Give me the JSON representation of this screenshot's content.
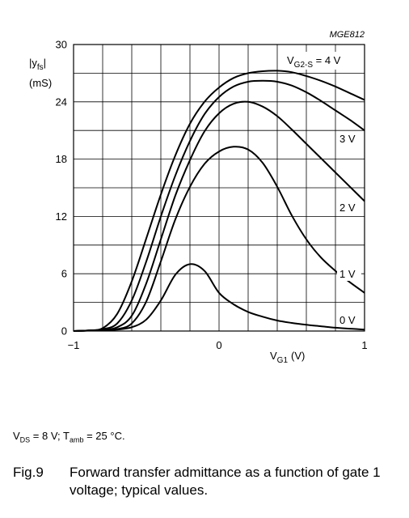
{
  "chart_data": {
    "type": "line",
    "code": "MGE812",
    "ylabel": {
      "main": "|y",
      "sub": "fs",
      "close": "|",
      "unit": "(mS)"
    },
    "xlabel": {
      "main": "V",
      "sub": "G1",
      "unit": "(V)"
    },
    "xlim": [
      -1,
      1
    ],
    "ylim": [
      0,
      30
    ],
    "x_ticks": [
      "−1",
      "0",
      "1"
    ],
    "y_ticks": [
      "0",
      "6",
      "12",
      "18",
      "24",
      "30"
    ],
    "grid": true,
    "legend_title": {
      "main": "V",
      "sub": "G2-S",
      "suffix": " = 4 V"
    },
    "series": [
      {
        "name": "4 V",
        "points": [
          [
            -1,
            0
          ],
          [
            -0.9,
            0.05
          ],
          [
            -0.8,
            0.3
          ],
          [
            -0.7,
            1.8
          ],
          [
            -0.6,
            5.2
          ],
          [
            -0.5,
            9.7
          ],
          [
            -0.4,
            14.3
          ],
          [
            -0.3,
            18.4
          ],
          [
            -0.2,
            21.7
          ],
          [
            -0.1,
            24.0
          ],
          [
            0,
            25.5
          ],
          [
            0.1,
            26.5
          ],
          [
            0.2,
            27.0
          ],
          [
            0.3,
            27.2
          ],
          [
            0.4,
            27.25
          ],
          [
            0.5,
            27.1
          ],
          [
            0.6,
            26.7
          ],
          [
            0.7,
            26.2
          ],
          [
            0.8,
            25.6
          ],
          [
            0.9,
            24.9
          ],
          [
            1,
            24.2
          ]
        ]
      },
      {
        "name": "3 V",
        "points": [
          [
            -1,
            0
          ],
          [
            -0.9,
            0.05
          ],
          [
            -0.8,
            0.2
          ],
          [
            -0.7,
            0.8
          ],
          [
            -0.6,
            3.2
          ],
          [
            -0.5,
            7.3
          ],
          [
            -0.4,
            12.0
          ],
          [
            -0.3,
            16.3
          ],
          [
            -0.2,
            19.9
          ],
          [
            -0.1,
            22.7
          ],
          [
            0,
            24.5
          ],
          [
            0.1,
            25.6
          ],
          [
            0.2,
            26.1
          ],
          [
            0.3,
            26.2
          ],
          [
            0.4,
            26.1
          ],
          [
            0.5,
            25.7
          ],
          [
            0.6,
            25.0
          ],
          [
            0.7,
            24.1
          ],
          [
            0.8,
            23.1
          ],
          [
            0.9,
            22.1
          ],
          [
            1,
            21.0
          ]
        ]
      },
      {
        "name": "2 V",
        "points": [
          [
            -1,
            0
          ],
          [
            -0.9,
            0.05
          ],
          [
            -0.8,
            0.1
          ],
          [
            -0.7,
            0.4
          ],
          [
            -0.6,
            1.6
          ],
          [
            -0.5,
            5.0
          ],
          [
            -0.4,
            9.6
          ],
          [
            -0.3,
            14.2
          ],
          [
            -0.2,
            17.9
          ],
          [
            -0.1,
            20.9
          ],
          [
            0,
            22.8
          ],
          [
            0.1,
            23.8
          ],
          [
            0.2,
            24.0
          ],
          [
            0.3,
            23.5
          ],
          [
            0.4,
            22.5
          ],
          [
            0.5,
            21.1
          ],
          [
            0.6,
            19.6
          ],
          [
            0.7,
            18.1
          ],
          [
            0.8,
            16.6
          ],
          [
            0.9,
            15.1
          ],
          [
            1,
            13.6
          ]
        ]
      },
      {
        "name": "1 V",
        "points": [
          [
            -1,
            0
          ],
          [
            -0.9,
            0.05
          ],
          [
            -0.8,
            0.1
          ],
          [
            -0.7,
            0.2
          ],
          [
            -0.6,
            0.8
          ],
          [
            -0.5,
            3.1
          ],
          [
            -0.4,
            7.3
          ],
          [
            -0.3,
            11.7
          ],
          [
            -0.2,
            15.1
          ],
          [
            -0.1,
            17.5
          ],
          [
            0,
            18.8
          ],
          [
            0.1,
            19.3
          ],
          [
            0.2,
            19.0
          ],
          [
            0.3,
            17.6
          ],
          [
            0.4,
            15.1
          ],
          [
            0.5,
            12.1
          ],
          [
            0.6,
            9.6
          ],
          [
            0.7,
            7.7
          ],
          [
            0.8,
            6.3
          ],
          [
            0.9,
            5.1
          ],
          [
            1,
            4.0
          ]
        ]
      },
      {
        "name": "0 V",
        "points": [
          [
            -1,
            0
          ],
          [
            -0.9,
            0.05
          ],
          [
            -0.8,
            0.1
          ],
          [
            -0.7,
            0.15
          ],
          [
            -0.6,
            0.4
          ],
          [
            -0.5,
            1.2
          ],
          [
            -0.4,
            3.2
          ],
          [
            -0.3,
            5.9
          ],
          [
            -0.2,
            7.0
          ],
          [
            -0.1,
            6.3
          ],
          [
            0,
            4.0
          ],
          [
            0.1,
            2.8
          ],
          [
            0.2,
            2.0
          ],
          [
            0.3,
            1.5
          ],
          [
            0.4,
            1.1
          ],
          [
            0.5,
            0.85
          ],
          [
            0.6,
            0.65
          ],
          [
            0.7,
            0.5
          ],
          [
            0.8,
            0.35
          ],
          [
            0.9,
            0.25
          ],
          [
            1,
            0.15
          ]
        ]
      }
    ],
    "curve_labels": [
      "3 V",
      "2 V",
      "1 V",
      "0 V"
    ],
    "colors": {
      "line": "#000000",
      "grid": "#000000",
      "background": "#ffffff"
    }
  },
  "conditions": {
    "vds_main": "V",
    "vds_sub": "DS",
    "vds_rest": " = 8 V; T",
    "tamb_sub": "amb",
    "tamb_rest": " = 25 °C."
  },
  "caption": {
    "number": "Fig.9",
    "text": "Forward transfer admittance as a function of gate 1 voltage; typical values."
  }
}
